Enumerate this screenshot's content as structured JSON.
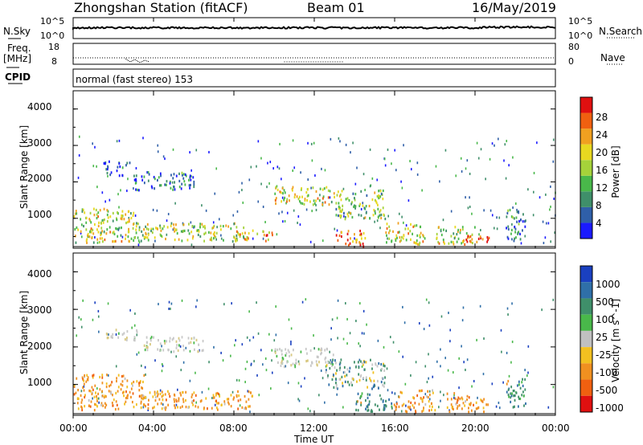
{
  "header": {
    "title": "Zhongshan Station (fitACF)",
    "beam": "Beam 01",
    "date": "16/May/2019"
  },
  "status_panels": {
    "nsky_label": "N.Sky",
    "nsearch_label": "N.Search",
    "freq_label_1": "Freq.",
    "freq_label_2": "[MHz]",
    "nave_label": "Nave",
    "cpid_label": "CPID",
    "cpid_text": "normal (fast stereo) 153",
    "noise_left_ticks": [
      "10^5",
      "10^0"
    ],
    "noise_right_ticks": [
      "10^5",
      "10^0"
    ],
    "freq_left_ticks": [
      "18",
      "8"
    ],
    "nave_right_ticks": [
      "80",
      "0"
    ]
  },
  "chart_data": [
    {
      "type": "heatmap",
      "panel": "power",
      "ylabel": "Slant Range [km]",
      "xlabel": "",
      "ylim": [
        180,
        4500
      ],
      "yticks": [
        "1000",
        "2000",
        "3000",
        "4000"
      ],
      "xticks": [
        "00:00",
        "04:00",
        "08:00",
        "12:00",
        "16:00",
        "20:00",
        "00:00"
      ],
      "colorbar": {
        "label": "Power [dB]",
        "ticks": [
          "4",
          "8",
          "12",
          "16",
          "20",
          "24",
          "28"
        ],
        "colors": [
          "#1a1aff",
          "#2f5fa8",
          "#3f8f6a",
          "#49b84a",
          "#a5d23a",
          "#e8d820",
          "#f0a020",
          "#f06010",
          "#e01010"
        ]
      },
      "echo_regions": [
        {
          "t0": 0.0,
          "t1": 3.0,
          "r0": 350,
          "r1": 1300,
          "level": 0.55
        },
        {
          "t0": 1.5,
          "t1": 2.8,
          "r0": 2200,
          "r1": 2600,
          "level": 0.15
        },
        {
          "t0": 3.0,
          "t1": 6.0,
          "r0": 1800,
          "r1": 2300,
          "level": 0.2
        },
        {
          "t0": 3.0,
          "t1": 8.5,
          "r0": 400,
          "r1": 900,
          "level": 0.5
        },
        {
          "t0": 8.0,
          "t1": 10.0,
          "r0": 400,
          "r1": 700,
          "level": 0.7
        },
        {
          "t0": 10.0,
          "t1": 13.0,
          "r0": 1400,
          "r1": 1900,
          "level": 0.55
        },
        {
          "t0": 13.0,
          "t1": 15.5,
          "r0": 1000,
          "r1": 1800,
          "level": 0.45
        },
        {
          "t0": 13.0,
          "t1": 14.5,
          "r0": 250,
          "r1": 700,
          "level": 0.8
        },
        {
          "t0": 15.5,
          "t1": 17.5,
          "r0": 300,
          "r1": 900,
          "level": 0.6
        },
        {
          "t0": 18.0,
          "t1": 20.0,
          "r0": 300,
          "r1": 800,
          "level": 0.55
        },
        {
          "t0": 19.5,
          "t1": 20.7,
          "r0": 250,
          "r1": 550,
          "level": 0.9
        },
        {
          "t0": 21.5,
          "t1": 22.5,
          "r0": 400,
          "r1": 1300,
          "level": 0.25
        }
      ]
    },
    {
      "type": "heatmap",
      "panel": "velocity",
      "ylabel": "Slant Range [km]",
      "xlabel": "Time UT",
      "ylim": [
        180,
        4500
      ],
      "yticks": [
        "1000",
        "2000",
        "3000",
        "4000"
      ],
      "xticks": [
        "00:00",
        "04:00",
        "08:00",
        "12:00",
        "16:00",
        "20:00",
        "00:00"
      ],
      "colorbar": {
        "label": "Velocity [m s^-1]",
        "ticks": [
          "1000",
          "500",
          "100",
          "25",
          "-25",
          "-100",
          "-500",
          "-1000"
        ],
        "colors": [
          "#1a40c0",
          "#2f6fa8",
          "#3f8f6a",
          "#49b84a",
          "#c0c0c0",
          "#f2c020",
          "#f09020",
          "#f06010",
          "#e01010"
        ]
      },
      "echo_regions": [
        {
          "t0": 0.0,
          "t1": 3.5,
          "r0": 350,
          "r1": 1300,
          "mode": "orange"
        },
        {
          "t0": 1.5,
          "t1": 3.2,
          "r0": 2200,
          "r1": 2500,
          "mode": "grey"
        },
        {
          "t0": 3.5,
          "t1": 6.5,
          "r0": 1900,
          "r1": 2300,
          "mode": "grey"
        },
        {
          "t0": 3.5,
          "t1": 9.0,
          "r0": 350,
          "r1": 850,
          "mode": "orange"
        },
        {
          "t0": 10.0,
          "t1": 13.0,
          "r0": 1500,
          "r1": 2000,
          "mode": "grey"
        },
        {
          "t0": 12.5,
          "t1": 15.5,
          "r0": 900,
          "r1": 1700,
          "mode": "mixed"
        },
        {
          "t0": 14.0,
          "t1": 16.0,
          "r0": 300,
          "r1": 800,
          "mode": "green"
        },
        {
          "t0": 16.0,
          "t1": 18.0,
          "r0": 300,
          "r1": 900,
          "mode": "orange"
        },
        {
          "t0": 18.5,
          "t1": 20.7,
          "r0": 300,
          "r1": 800,
          "mode": "orange"
        },
        {
          "t0": 21.5,
          "t1": 22.5,
          "r0": 400,
          "r1": 1200,
          "mode": "green"
        }
      ]
    }
  ]
}
